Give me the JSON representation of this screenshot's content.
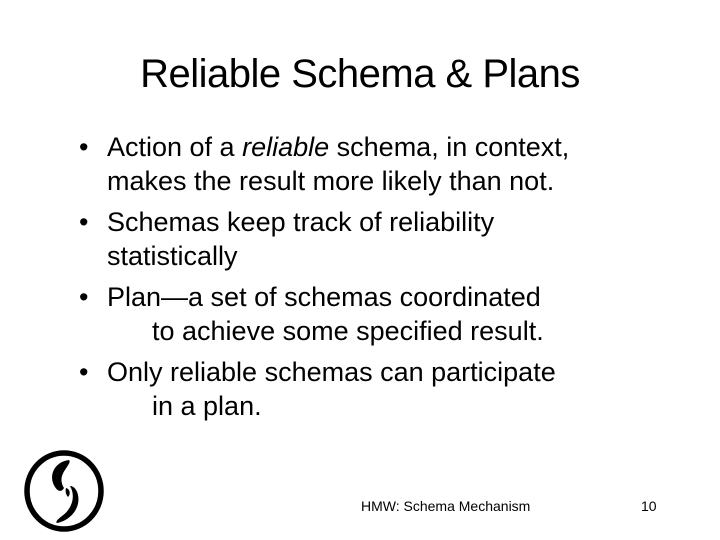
{
  "slide": {
    "title": "Reliable Schema & Plans",
    "bullets": [
      {
        "bullet_char": "•",
        "line1_before": "Action of a ",
        "line1_emphasis": "reliable",
        "line1_after": " schema, in context,",
        "line2": "makes the result more likely than not."
      },
      {
        "bullet_char": "•",
        "line1": "Schemas keep track of reliability",
        "line2": "statistically"
      },
      {
        "bullet_char": "•",
        "line1": "Plan—a set of schemas coordinated",
        "line2": "to achieve some specified result."
      },
      {
        "bullet_char": "•",
        "line1": "Only reliable schemas can participate",
        "line2": "in a plan."
      }
    ],
    "footer": {
      "text": "HMW: Schema Mechanism",
      "page_number": "10"
    },
    "logo": {
      "icon": "seal-logo-icon"
    }
  }
}
